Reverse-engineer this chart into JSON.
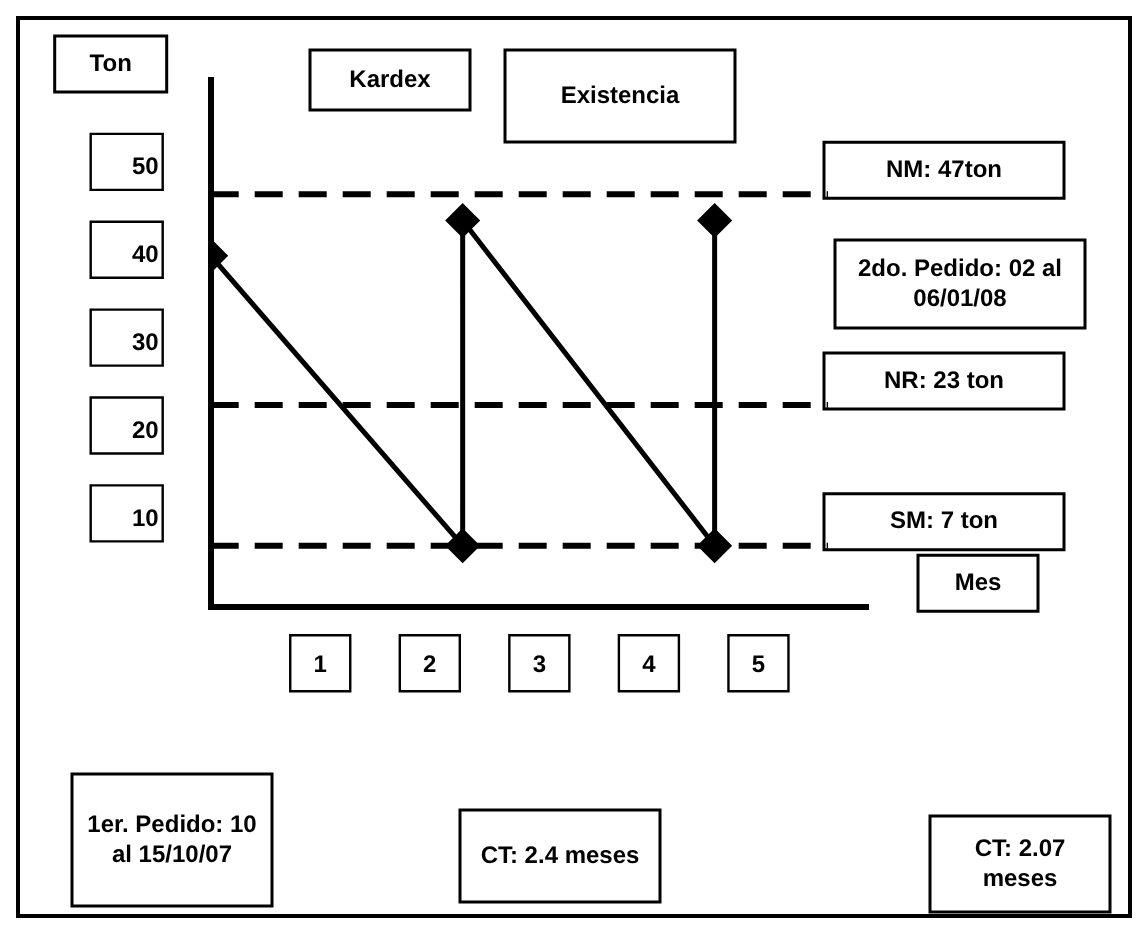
{
  "chart_data": {
    "type": "line",
    "xlabel": "Mes",
    "ylabel": "Ton",
    "x": [
      0,
      2.3,
      2.3,
      4.6,
      4.6
    ],
    "series": [
      {
        "color": "#000000",
        "values": [
          40,
          7,
          44,
          7,
          44
        ]
      }
    ],
    "xlim": [
      0,
      6
    ],
    "ylim": [
      0,
      60
    ],
    "xticks": [
      1,
      2,
      3,
      4,
      5
    ],
    "yticks": [
      10,
      20,
      30,
      40,
      50
    ],
    "grid": false,
    "legend": false,
    "marker": "diamond",
    "line_style": "solid",
    "ref_lines": [
      {
        "axis": "y",
        "value": 47,
        "label": "NM: 47ton",
        "line_style": "dashed",
        "color": "#000000"
      },
      {
        "axis": "y",
        "value": 23,
        "label": "NR: 23 ton",
        "line_style": "dashed",
        "color": "#000000"
      },
      {
        "axis": "y",
        "value": 7,
        "label": "SM: 7 ton",
        "line_style": "dashed",
        "color": "#000000"
      }
    ],
    "annotations": [
      "Kardex",
      "Existencia",
      "2do. Pedido: 02 al 06/01/08",
      "1er. Pedido: 10 al 15/10/07",
      "CT: 2.4 meses",
      "CT: 2.07 meses"
    ]
  }
}
